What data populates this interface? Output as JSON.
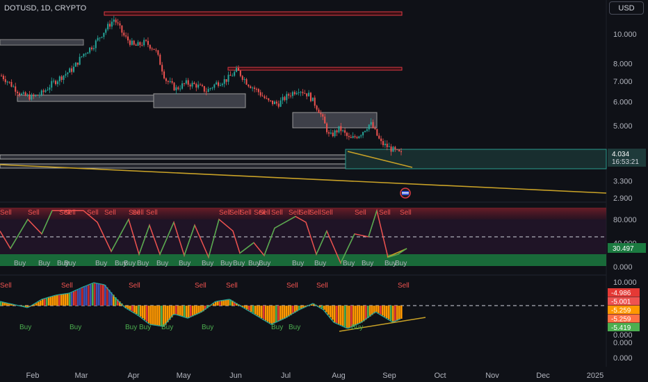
{
  "header": {
    "symbol": "DOTUSD, 1D, CRYPTO",
    "currency_button": "USD"
  },
  "price_axis": {
    "ticks": [
      "10.000",
      "8.000",
      "7.000",
      "6.000",
      "5.000",
      "3.300",
      "2.900"
    ],
    "last_price": "4.034",
    "countdown": "16:53:21"
  },
  "osc1_axis": {
    "ticks": [
      "80.000",
      "40.000",
      "0.000"
    ],
    "value": "30.497"
  },
  "osc2_axis": {
    "ticks": [
      "10.000",
      "0.000",
      "0.000",
      "0.000"
    ],
    "values": [
      "-4.986",
      "-5.001",
      "-5.259",
      "-5.259",
      "-5.419"
    ]
  },
  "time_axis": {
    "labels": [
      "Feb",
      "Mar",
      "Apr",
      "May",
      "Jun",
      "Jul",
      "Aug",
      "Sep",
      "Oct",
      "Nov",
      "Dec",
      "2025"
    ]
  },
  "signals": {
    "sell": "Sell",
    "buy": "Buy"
  },
  "colors": {
    "up": "#26a69a",
    "down": "#ef5350",
    "trend": "#c9a227",
    "zone": "#5d606b",
    "bg": "#0f1117"
  },
  "chart_data": [
    {
      "type": "candlestick",
      "title": "DOTUSD, 1D, CRYPTO",
      "y_scale": "log",
      "y_ticks": [
        10,
        8,
        7,
        6,
        5,
        3.3,
        2.9
      ],
      "x_labels": [
        "Feb",
        "Mar",
        "Apr",
        "May",
        "Jun",
        "Jul",
        "Aug",
        "Sep",
        "Oct",
        "Nov",
        "Dec",
        "2025"
      ],
      "approx_closes": [
        7.3,
        6.8,
        6.3,
        6.2,
        6.4,
        6.9,
        7.3,
        7.7,
        8.6,
        9.2,
        10.2,
        11.2,
        9.8,
        9.1,
        9.4,
        8.9,
        7.1,
        6.6,
        6.9,
        6.8,
        6.5,
        6.9,
        7.1,
        7.6,
        6.9,
        6.5,
        6.0,
        5.9,
        6.3,
        6.6,
        6.3,
        5.6,
        4.6,
        4.9,
        4.5,
        4.7,
        5.1,
        4.4,
        4.2,
        4.03
      ],
      "last_value": 4.034
    },
    {
      "type": "line",
      "name": "oscillator",
      "y_ticks": [
        80,
        40,
        0
      ],
      "last_value": 30.497
    },
    {
      "type": "bar",
      "name": "histogram",
      "y_ticks": [
        10,
        0
      ],
      "values": [
        -4.986,
        -5.001,
        -5.259,
        -5.259,
        -5.419
      ]
    }
  ]
}
